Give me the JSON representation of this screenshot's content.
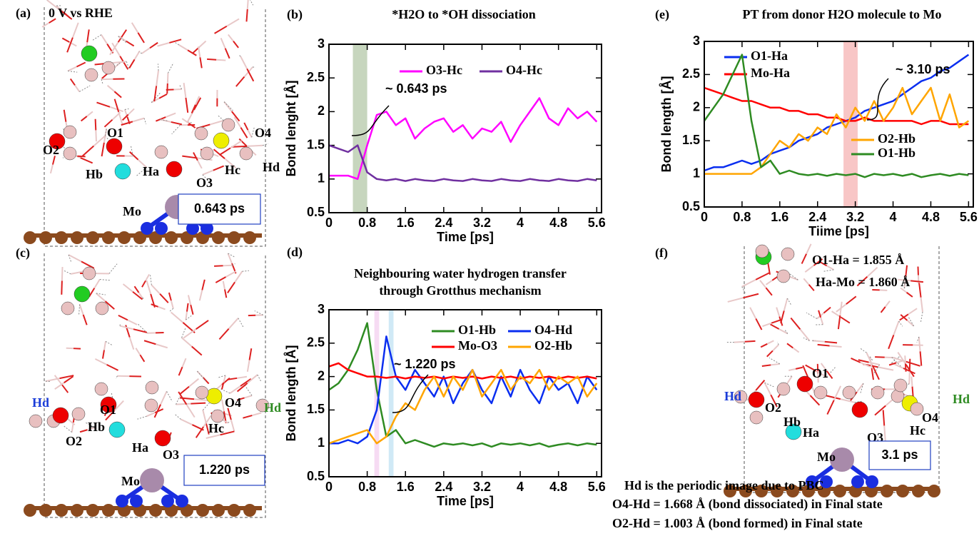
{
  "panels": [
    {
      "label": "(a)",
      "title": "0 V vs RHE",
      "atom_labels": [
        "O1",
        "O2",
        "Hb",
        "Ha",
        "O3",
        "Hc",
        "O4",
        "Hd",
        "Mo"
      ],
      "time": "0.643 ps"
    },
    {
      "label": "(c)",
      "atom_labels": [
        "Hd",
        "O1",
        "O4",
        "Hd",
        "O2",
        "Hb",
        "Ha",
        "Hc",
        "O3",
        "Mo"
      ],
      "time": "1.220 ps"
    },
    {
      "label": "(f)",
      "notes": [
        "O1-Ha = 1.855 Å",
        "Ha-Mo = 1.860 Å"
      ],
      "atom_labels": [
        "O1",
        "Hd",
        "O2",
        "Hb",
        "Ha",
        "O3",
        "Hc",
        "O4",
        "Hd",
        "Mo"
      ],
      "time": "3.1 ps"
    }
  ],
  "footnotes": [
    "Hd is the periodic image due to PBC",
    "O4-Hd = 1.668 Å (bond dissociated) in Final state",
    "O2-Hd = 1.003 Å (bond formed) in Final state"
  ],
  "chart_data": [
    {
      "type": "line",
      "panel_label": "(b)",
      "title": [
        "*H2O to *OH dissociation"
      ],
      "x_label": "Time [ps]",
      "y_label": "Bond lenght [Å]",
      "xlim": [
        0,
        5.7
      ],
      "ylim": [
        0.5,
        3
      ],
      "xticks": [
        0,
        0.8,
        1.6,
        2.4,
        3.2,
        4,
        4.8,
        5.6
      ],
      "yticks": [
        0.5,
        1,
        1.5,
        2,
        2.5,
        3
      ],
      "highlights": [
        {
          "from": 0.5,
          "to": 0.8,
          "color": "#b9ccae"
        }
      ],
      "annotation": "~ 0.643 ps",
      "x": [
        0,
        0.2,
        0.4,
        0.6,
        0.8,
        1,
        1.2,
        1.4,
        1.6,
        1.8,
        2,
        2.2,
        2.4,
        2.6,
        2.8,
        3,
        3.2,
        3.4,
        3.6,
        3.8,
        4,
        4.2,
        4.4,
        4.6,
        4.8,
        5,
        5.2,
        5.4,
        5.6
      ],
      "series": [
        {
          "name": "O3-Hc",
          "color": "#ff00ff",
          "values": [
            1.05,
            1.05,
            1.05,
            1.0,
            1.5,
            1.95,
            2.0,
            1.8,
            1.9,
            1.6,
            1.75,
            1.85,
            1.9,
            1.7,
            1.8,
            1.6,
            1.75,
            1.7,
            1.85,
            1.55,
            1.8,
            2.0,
            2.2,
            1.9,
            1.8,
            2.05,
            1.9,
            2.0,
            1.85
          ]
        },
        {
          "name": "O4-Hc",
          "color": "#7030a0",
          "values": [
            1.5,
            1.45,
            1.4,
            1.5,
            1.1,
            1.0,
            0.98,
            1.0,
            0.97,
            1.0,
            0.98,
            0.97,
            1.0,
            0.98,
            0.97,
            1.0,
            0.98,
            0.97,
            1.0,
            0.98,
            0.97,
            1.0,
            0.98,
            0.97,
            1.0,
            0.98,
            0.97,
            1.0,
            0.98
          ]
        }
      ]
    },
    {
      "type": "line",
      "panel_label": "(d)",
      "title": [
        "Neighbouring water hydrogen transfer",
        "through Grotthus mechanism"
      ],
      "x_label": "Time [ps]",
      "y_label": "Bond length [Å]",
      "xlim": [
        0,
        5.7
      ],
      "ylim": [
        0.5,
        3
      ],
      "xticks": [
        0,
        0.8,
        1.6,
        2.4,
        3.2,
        4,
        4.8,
        5.6
      ],
      "yticks": [
        0.5,
        1,
        1.5,
        2,
        2.5,
        3
      ],
      "highlights": [
        {
          "from": 0.95,
          "to": 1.05,
          "color": "#f4d2f0"
        },
        {
          "from": 1.25,
          "to": 1.35,
          "color": "#c4e4f4"
        }
      ],
      "annotation": "~ 1.220 ps",
      "x": [
        0,
        0.2,
        0.4,
        0.6,
        0.8,
        1,
        1.2,
        1.4,
        1.6,
        1.8,
        2,
        2.2,
        2.4,
        2.6,
        2.8,
        3,
        3.2,
        3.4,
        3.6,
        3.8,
        4,
        4.2,
        4.4,
        4.6,
        4.8,
        5,
        5.2,
        5.4,
        5.6
      ],
      "series": [
        {
          "name": "O1-Hb",
          "color": "#2e8b22",
          "values": [
            1.8,
            1.9,
            2.1,
            2.4,
            2.8,
            1.8,
            1.1,
            1.2,
            1.0,
            1.05,
            1.0,
            0.95,
            1.0,
            0.98,
            1.0,
            0.97,
            1.0,
            0.95,
            1.0,
            0.98,
            1.0,
            0.97,
            1.0,
            0.95,
            0.98,
            1.0,
            0.97,
            1.0,
            0.98
          ]
        },
        {
          "name": "O4-Hd",
          "color": "#0a2ef0",
          "values": [
            1.0,
            1.0,
            1.05,
            1.0,
            1.1,
            1.5,
            2.6,
            2.0,
            1.8,
            2.1,
            1.9,
            1.7,
            2.0,
            1.6,
            1.9,
            2.1,
            1.8,
            1.6,
            2.0,
            1.7,
            2.1,
            1.8,
            1.6,
            2.0,
            1.8,
            1.9,
            1.6,
            2.0,
            1.8
          ]
        },
        {
          "name": "Mo-O3",
          "color": "#ff0000",
          "values": [
            2.15,
            2.2,
            2.1,
            2.05,
            2.0,
            2.0,
            1.98,
            2.0,
            1.97,
            2.0,
            1.98,
            2.0,
            1.97,
            2.0,
            1.98,
            2.0,
            1.97,
            2.0,
            1.98,
            2.0,
            1.97,
            2.0,
            1.98,
            2.0,
            1.97,
            2.0,
            1.98,
            2.0,
            1.97
          ]
        },
        {
          "name": "O2-Hb",
          "color": "#ffa500",
          "values": [
            1.0,
            1.05,
            1.1,
            1.15,
            1.2,
            1.0,
            1.1,
            1.4,
            1.6,
            1.5,
            1.8,
            2.0,
            1.7,
            2.0,
            1.8,
            2.1,
            1.7,
            1.9,
            2.1,
            1.8,
            2.0,
            1.9,
            2.1,
            1.8,
            2.0,
            1.9,
            2.0,
            1.7,
            1.9
          ]
        }
      ]
    },
    {
      "type": "line",
      "panel_label": "(e)",
      "title": [
        "PT from donor H2O molecule to Mo"
      ],
      "x_label": "Tiime [ps]",
      "y_label": "Bond length [Å]",
      "xlim": [
        0,
        5.7
      ],
      "ylim": [
        0.5,
        3
      ],
      "xticks": [
        0,
        0.8,
        1.6,
        2.4,
        3.2,
        4,
        4.8,
        5.6
      ],
      "yticks": [
        0.5,
        1,
        1.5,
        2,
        2.5,
        3
      ],
      "highlights": [
        {
          "from": 2.95,
          "to": 3.25,
          "color": "#f6b8b8"
        }
      ],
      "annotation": "~ 3.10 ps",
      "x": [
        0,
        0.2,
        0.4,
        0.6,
        0.8,
        1,
        1.2,
        1.4,
        1.6,
        1.8,
        2,
        2.2,
        2.4,
        2.6,
        2.8,
        3,
        3.2,
        3.4,
        3.6,
        3.8,
        4,
        4.2,
        4.4,
        4.6,
        4.8,
        5,
        5.2,
        5.4,
        5.6
      ],
      "series": [
        {
          "name": "O1-Ha",
          "color": "#0a2ef0",
          "values": [
            1.05,
            1.1,
            1.1,
            1.15,
            1.2,
            1.15,
            1.2,
            1.3,
            1.35,
            1.4,
            1.5,
            1.55,
            1.6,
            1.7,
            1.75,
            1.8,
            1.85,
            1.95,
            2.0,
            2.05,
            2.1,
            2.2,
            2.3,
            2.4,
            2.45,
            2.55,
            2.6,
            2.7,
            2.8
          ]
        },
        {
          "name": "Mo-Ha",
          "color": "#ff0000",
          "values": [
            2.3,
            2.25,
            2.2,
            2.15,
            2.1,
            2.1,
            2.05,
            2.0,
            2.0,
            1.95,
            1.95,
            1.9,
            1.9,
            1.85,
            1.85,
            1.8,
            1.8,
            1.85,
            1.8,
            1.8,
            1.8,
            1.8,
            1.8,
            1.75,
            1.8,
            1.8,
            1.75,
            1.75,
            1.75
          ]
        },
        {
          "name": "O2-Hb",
          "color": "#ffa500",
          "values": [
            1.0,
            1.0,
            1.0,
            1.0,
            1.0,
            1.0,
            1.1,
            1.3,
            1.5,
            1.4,
            1.6,
            1.5,
            1.7,
            1.6,
            1.9,
            1.7,
            2.0,
            1.8,
            2.1,
            1.8,
            2.0,
            2.3,
            1.9,
            2.1,
            2.3,
            1.8,
            2.2,
            1.7,
            1.8
          ]
        },
        {
          "name": "O1-Hb",
          "color": "#2e8b22",
          "values": [
            1.8,
            2.0,
            2.2,
            2.5,
            2.8,
            1.8,
            1.1,
            1.2,
            1.0,
            1.05,
            1.0,
            0.98,
            1.0,
            0.97,
            1.0,
            0.98,
            1.0,
            0.95,
            1.0,
            0.98,
            1.0,
            0.97,
            1.0,
            0.95,
            0.98,
            1.0,
            0.97,
            1.0,
            0.98
          ]
        }
      ]
    }
  ]
}
